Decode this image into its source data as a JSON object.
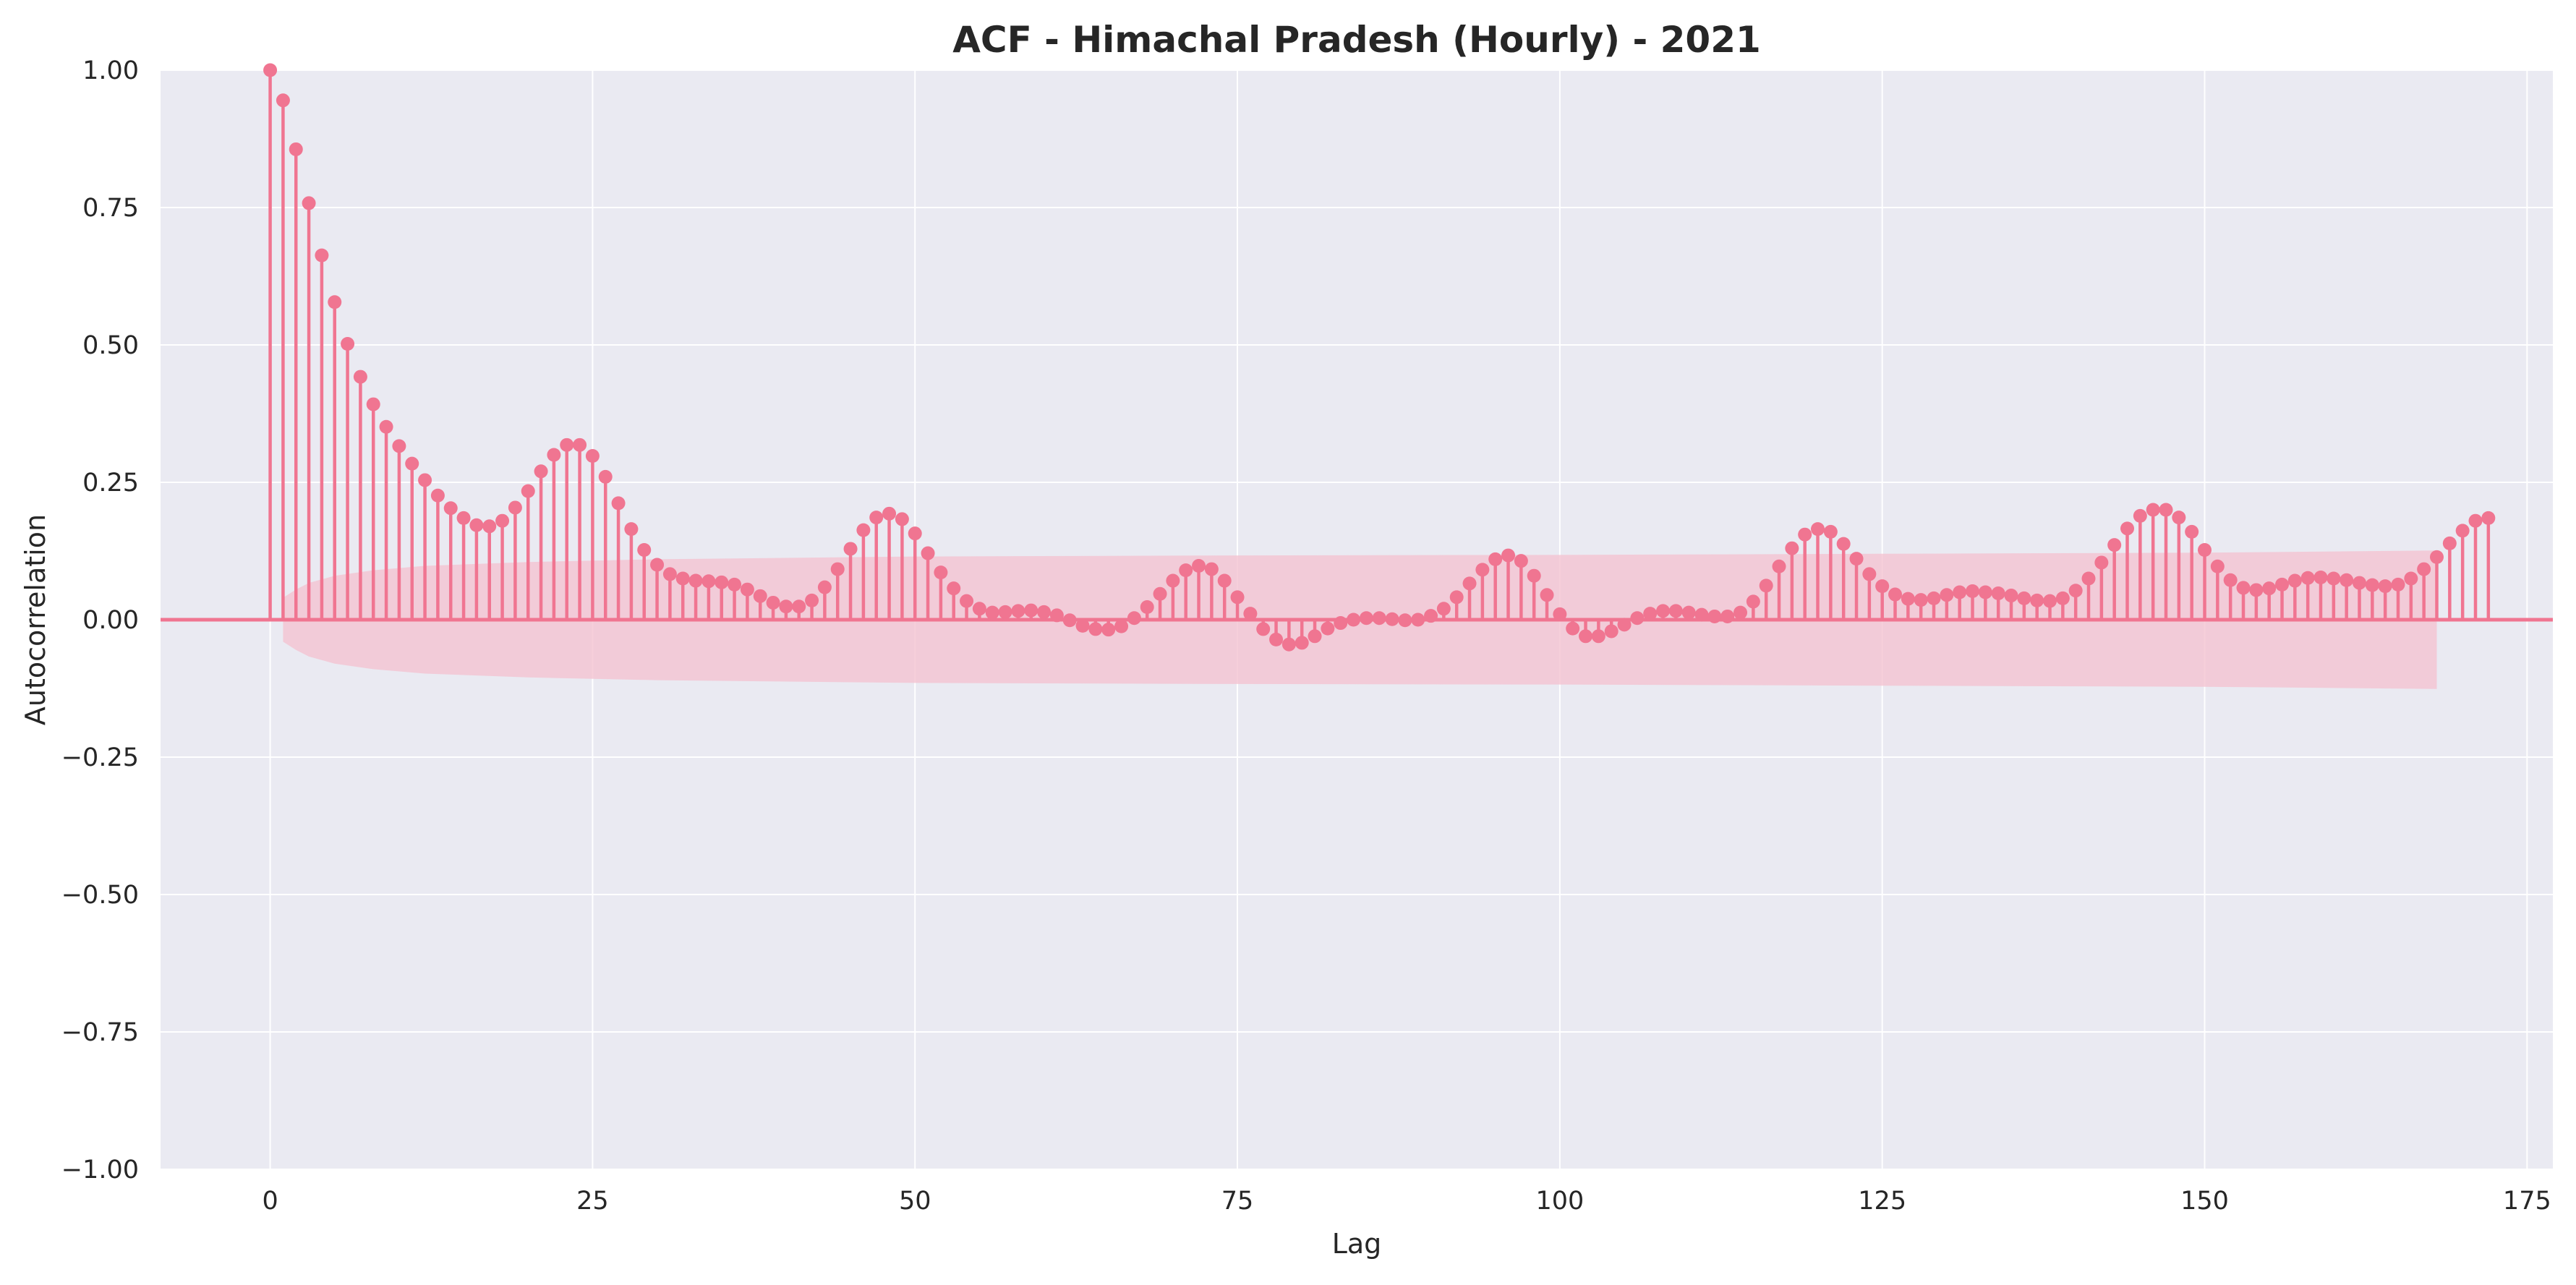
{
  "colors": {
    "background": "#eaeaf2",
    "grid": "#ffffff",
    "stem": "#f07591",
    "marker": "#f07591",
    "confidence_band": "#f4c3d1",
    "zero_line": "#f07591"
  },
  "chart_data": {
    "type": "stem",
    "title": "ACF - Himachal Pradesh (Hourly) - 2021",
    "xlabel": "Lag",
    "ylabel": "Autocorrelation",
    "xlim": [
      -8.5,
      177
    ],
    "ylim": [
      -1.0,
      1.0
    ],
    "x_ticks": [
      0,
      25,
      50,
      75,
      100,
      125,
      150,
      175
    ],
    "x_tick_labels": [
      "0",
      "25",
      "50",
      "75",
      "100",
      "125",
      "150",
      "175"
    ],
    "y_ticks": [
      1.0,
      0.75,
      0.5,
      0.25,
      0.0,
      -0.25,
      -0.5,
      -0.75,
      -1.0
    ],
    "y_tick_labels": [
      "1.00",
      "0.75",
      "0.50",
      "0.25",
      "0.00",
      "−0.25",
      "−0.50",
      "−0.75",
      "−1.00"
    ],
    "grid": true,
    "zero_line": 0.0,
    "lags_start": 0,
    "values": [
      1.0,
      0.945,
      0.856,
      0.758,
      0.663,
      0.578,
      0.502,
      0.442,
      0.392,
      0.351,
      0.316,
      0.284,
      0.254,
      0.226,
      0.203,
      0.185,
      0.172,
      0.17,
      0.18,
      0.204,
      0.234,
      0.27,
      0.3,
      0.318,
      0.318,
      0.298,
      0.26,
      0.212,
      0.165,
      0.127,
      0.1,
      0.083,
      0.075,
      0.071,
      0.07,
      0.068,
      0.064,
      0.055,
      0.043,
      0.031,
      0.024,
      0.024,
      0.035,
      0.059,
      0.092,
      0.129,
      0.163,
      0.186,
      0.193,
      0.183,
      0.157,
      0.121,
      0.086,
      0.057,
      0.034,
      0.02,
      0.013,
      0.014,
      0.016,
      0.017,
      0.014,
      0.008,
      -0.001,
      -0.011,
      -0.017,
      -0.018,
      -0.012,
      0.003,
      0.023,
      0.047,
      0.071,
      0.09,
      0.098,
      0.092,
      0.071,
      0.041,
      0.011,
      -0.017,
      -0.036,
      -0.045,
      -0.042,
      -0.03,
      -0.016,
      -0.006,
      0.0,
      0.003,
      0.003,
      0.001,
      -0.001,
      0.0,
      0.007,
      0.02,
      0.041,
      0.066,
      0.091,
      0.11,
      0.117,
      0.107,
      0.08,
      0.045,
      0.01,
      -0.016,
      -0.03,
      -0.03,
      -0.021,
      -0.009,
      0.003,
      0.011,
      0.016,
      0.016,
      0.013,
      0.009,
      0.006,
      0.006,
      0.013,
      0.033,
      0.062,
      0.097,
      0.13,
      0.155,
      0.165,
      0.16,
      0.138,
      0.111,
      0.083,
      0.061,
      0.046,
      0.038,
      0.036,
      0.039,
      0.045,
      0.05,
      0.052,
      0.05,
      0.048,
      0.044,
      0.039,
      0.035,
      0.034,
      0.039,
      0.053,
      0.075,
      0.104,
      0.136,
      0.166,
      0.189,
      0.2,
      0.2,
      0.186,
      0.16,
      0.127,
      0.097,
      0.072,
      0.058,
      0.054,
      0.057,
      0.064,
      0.071,
      0.076,
      0.077,
      0.075,
      0.072,
      0.067,
      0.063,
      0.061,
      0.064,
      0.075,
      0.092,
      0.114,
      0.139,
      0.162,
      0.18,
      0.185
    ],
    "confidence_band": {
      "lags": [
        1,
        2,
        3,
        5,
        8,
        12,
        20,
        30,
        50,
        75,
        100,
        125,
        150,
        168
      ],
      "upper": [
        0.04,
        0.055,
        0.067,
        0.08,
        0.09,
        0.098,
        0.105,
        0.11,
        0.115,
        0.117,
        0.118,
        0.12,
        0.122,
        0.126
      ],
      "lower": [
        -0.04,
        -0.055,
        -0.067,
        -0.08,
        -0.09,
        -0.098,
        -0.105,
        -0.11,
        -0.115,
        -0.117,
        -0.118,
        -0.12,
        -0.122,
        -0.126
      ]
    }
  }
}
